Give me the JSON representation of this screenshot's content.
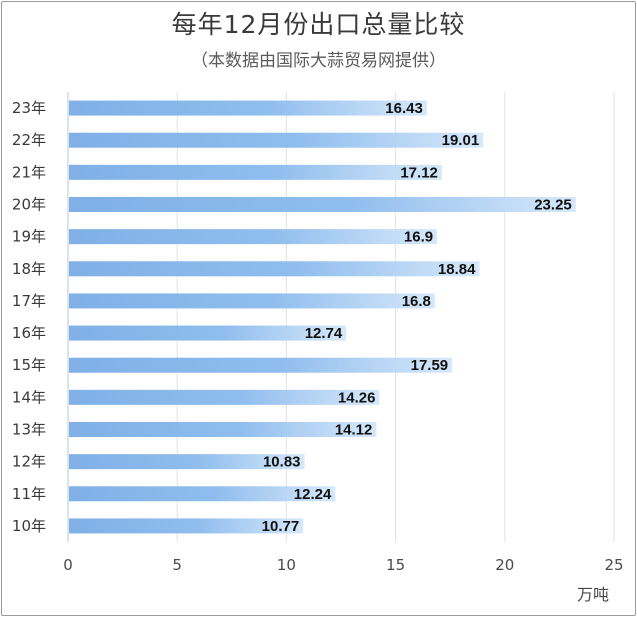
{
  "chart_data": {
    "type": "bar",
    "orientation": "horizontal",
    "title": "每年12月份出口总量比较",
    "subtitle": "（本数据由国际大蒜贸易网提供）",
    "unit": "万吨",
    "categories": [
      "23年",
      "22年",
      "21年",
      "20年",
      "19年",
      "18年",
      "17年",
      "16年",
      "15年",
      "14年",
      "13年",
      "12年",
      "11年",
      "10年"
    ],
    "values": [
      16.43,
      19.01,
      17.12,
      23.25,
      16.9,
      18.84,
      16.8,
      12.74,
      17.59,
      14.26,
      14.12,
      10.83,
      12.24,
      10.77
    ],
    "value_labels": [
      "16.43",
      "19.01",
      "17.12",
      "23.25",
      "16.9",
      "18.84",
      "16.8",
      "12.74",
      "17.59",
      "14.26",
      "14.12",
      "10.83",
      "12.24",
      "10.77"
    ],
    "xlim": [
      0,
      25
    ],
    "xticks": [
      "0",
      "5",
      "10",
      "15",
      "20",
      "25"
    ],
    "grid": "vertical",
    "bar_color": "#8ab9ec"
  }
}
